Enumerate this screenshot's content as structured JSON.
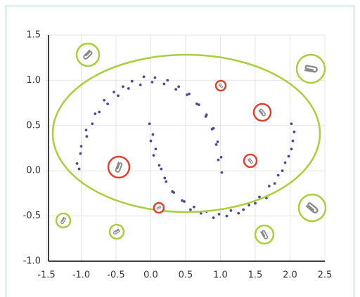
{
  "chart_data": {
    "type": "scatter",
    "xlim": [
      -1.5,
      2.5
    ],
    "ylim": [
      -1.0,
      1.5
    ],
    "xticks": [
      -1.5,
      {
        "value": -1.0,
        "label": "-1.0"
      },
      -0.5,
      {
        "value": 0.0,
        "label": "0.0"
      },
      0.5,
      {
        "value": 1.0,
        "label": "1.0"
      },
      1.5,
      {
        "value": 2.0,
        "label": "2.0"
      },
      2.5
    ],
    "yticks": [
      1.5,
      {
        "value": 1.0,
        "label": "1.0"
      },
      0.5,
      {
        "value": 0.0,
        "label": "0.0"
      },
      -0.5,
      {
        "value": -1.0,
        "label": "-1.0"
      }
    ],
    "grid": true,
    "series": [
      {
        "color": "#4b4b9e",
        "x": [
          1.02,
          0.97,
          1.01,
          0.94,
          0.96,
          0.88,
          0.9,
          0.79,
          0.8,
          0.69,
          0.66,
          0.55,
          0.52,
          0.4,
          0.36,
          0.24,
          0.19,
          0.06,
          0.02,
          -0.1,
          -0.15,
          -0.27,
          -0.32,
          -0.4,
          -0.47,
          -0.53,
          -0.62,
          -0.67,
          -0.74,
          -0.8,
          -0.84,
          -0.93,
          -0.92,
          -1.0,
          -1.01,
          -1.06,
          -1.03
        ],
        "y": [
          -0.02,
          0.12,
          0.15,
          0.29,
          0.32,
          0.46,
          0.47,
          0.6,
          0.62,
          0.73,
          0.74,
          0.85,
          0.84,
          0.93,
          0.9,
          1.0,
          0.96,
          1.03,
          0.98,
          1.04,
          0.95,
          0.99,
          0.91,
          0.93,
          0.83,
          0.87,
          0.74,
          0.78,
          0.65,
          0.63,
          0.52,
          0.45,
          0.38,
          0.27,
          0.19,
          0.08,
          0.02
        ]
      },
      {
        "color": "#4b4b9e",
        "x": [
          -0.02,
          0.03,
          0.0,
          0.07,
          0.04,
          0.12,
          0.15,
          0.2,
          0.22,
          0.31,
          0.33,
          0.45,
          0.48,
          0.57,
          0.62,
          0.72,
          0.8,
          0.9,
          0.98,
          1.09,
          1.15,
          1.26,
          1.33,
          1.41,
          1.5,
          1.56,
          1.66,
          1.7,
          1.78,
          1.83,
          1.89,
          1.93,
          1.98,
          2.02,
          2.04,
          2.06,
          2.02
        ],
        "y": [
          0.52,
          0.4,
          0.33,
          0.24,
          0.17,
          0.06,
          0.02,
          -0.08,
          -0.12,
          -0.23,
          -0.24,
          -0.33,
          -0.34,
          -0.43,
          -0.4,
          -0.47,
          -0.45,
          -0.52,
          -0.48,
          -0.5,
          -0.44,
          -0.47,
          -0.43,
          -0.38,
          -0.36,
          -0.29,
          -0.3,
          -0.17,
          -0.14,
          -0.05,
          0.0,
          0.09,
          0.16,
          0.24,
          0.33,
          0.43,
          0.52
        ]
      }
    ]
  }
}
